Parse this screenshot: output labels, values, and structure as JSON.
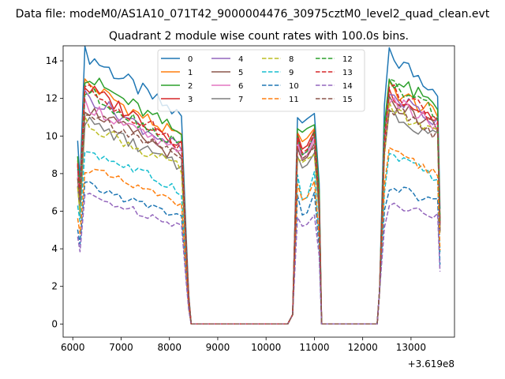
{
  "chart_data": {
    "type": "line",
    "suptitle": "Data file: modeM0/AS1A10_071T42_9000004476_30975cztM0_level2_quad_clean.evt",
    "title": "Quadrant 2 module wise count rates with 100.0s bins.",
    "xlabel": "",
    "ylabel": "",
    "x_offset_label": "+3.619e8",
    "xlim": [
      5800,
      13900
    ],
    "ylim": [
      -0.7,
      14.8
    ],
    "xticks": [
      6000,
      7000,
      8000,
      9000,
      10000,
      11000,
      12000,
      13000
    ],
    "xtick_labels": [
      "6000",
      "7000",
      "8000",
      "9000",
      "10000",
      "11000",
      "12000",
      "13000"
    ],
    "yticks": [
      0,
      2,
      4,
      6,
      8,
      10,
      12,
      14
    ],
    "ytick_labels": [
      "0",
      "2",
      "4",
      "6",
      "8",
      "10",
      "12",
      "14"
    ],
    "grid": false,
    "legend_location": "upper center",
    "legend_columns": 4,
    "series": [
      {
        "name": "0",
        "color": "#1f77b4",
        "linestyle": "solid",
        "level1": 13.0,
        "level2": 10.7,
        "level3": 13.6,
        "peak2": 11.2
      },
      {
        "name": "1",
        "color": "#ff7f0e",
        "linestyle": "solid",
        "level1": 11.6,
        "level2": 9.7,
        "level3": 12.0,
        "peak2": 10.4
      },
      {
        "name": "2",
        "color": "#2ca02c",
        "linestyle": "solid",
        "level1": 11.9,
        "level2": 10.2,
        "level3": 12.5,
        "peak2": 10.6
      },
      {
        "name": "3",
        "color": "#d62728",
        "linestyle": "solid",
        "level1": 11.4,
        "level2": 9.3,
        "level3": 11.8,
        "peak2": 10.3
      },
      {
        "name": "4",
        "color": "#9467bd",
        "linestyle": "solid",
        "level1": 11.0,
        "level2": 9.0,
        "level3": 11.7,
        "peak2": 10.0
      },
      {
        "name": "5",
        "color": "#8c564b",
        "linestyle": "solid",
        "level1": 10.4,
        "level2": 8.7,
        "level3": 11.3,
        "peak2": 9.6
      },
      {
        "name": "6",
        "color": "#e377c2",
        "linestyle": "solid",
        "level1": 10.6,
        "level2": 8.8,
        "level3": 11.4,
        "peak2": 9.8
      },
      {
        "name": "7",
        "color": "#7f7f7f",
        "linestyle": "solid",
        "level1": 9.8,
        "level2": 8.3,
        "level3": 10.8,
        "peak2": 9.1
      },
      {
        "name": "8",
        "color": "#bcbd22",
        "linestyle": "dashed",
        "level1": 9.7,
        "level2": 8.6,
        "level3": 10.9,
        "peak2": 9.0
      },
      {
        "name": "9",
        "color": "#17becf",
        "linestyle": "dashed",
        "level1": 8.4,
        "level2": 6.6,
        "level3": 8.5,
        "peak2": 8.1
      },
      {
        "name": "10",
        "color": "#1f77b4",
        "linestyle": "dashed",
        "level1": 6.7,
        "level2": 5.8,
        "level3": 7.0,
        "peak2": 7.0
      },
      {
        "name": "11",
        "color": "#ff7f0e",
        "linestyle": "dashed",
        "level1": 7.5,
        "level2": 6.6,
        "level3": 8.7,
        "peak2": 7.6
      },
      {
        "name": "12",
        "color": "#2ca02c",
        "linestyle": "dashed",
        "level1": 11.2,
        "level2": 9.0,
        "level3": 12.2,
        "peak2": 10.2
      },
      {
        "name": "13",
        "color": "#d62728",
        "linestyle": "dashed",
        "level1": 11.3,
        "level2": 9.1,
        "level3": 11.9,
        "peak2": 10.1
      },
      {
        "name": "14",
        "color": "#9467bd",
        "linestyle": "dashed",
        "level1": 6.2,
        "level2": 5.2,
        "level3": 6.2,
        "peak2": 5.8
      },
      {
        "name": "15",
        "color": "#8c564b",
        "linestyle": "dashed",
        "level1": 10.3,
        "level2": 8.8,
        "level3": 11.0,
        "peak2": 9.4
      }
    ],
    "segments": {
      "zero_level": 0,
      "on1": [
        6150,
        8300
      ],
      "off1": [
        8450,
        10450
      ],
      "on2": [
        10650,
        11000
      ],
      "off2": [
        11150,
        12300
      ],
      "on3": [
        12450,
        13550
      ],
      "bin": 100
    }
  }
}
